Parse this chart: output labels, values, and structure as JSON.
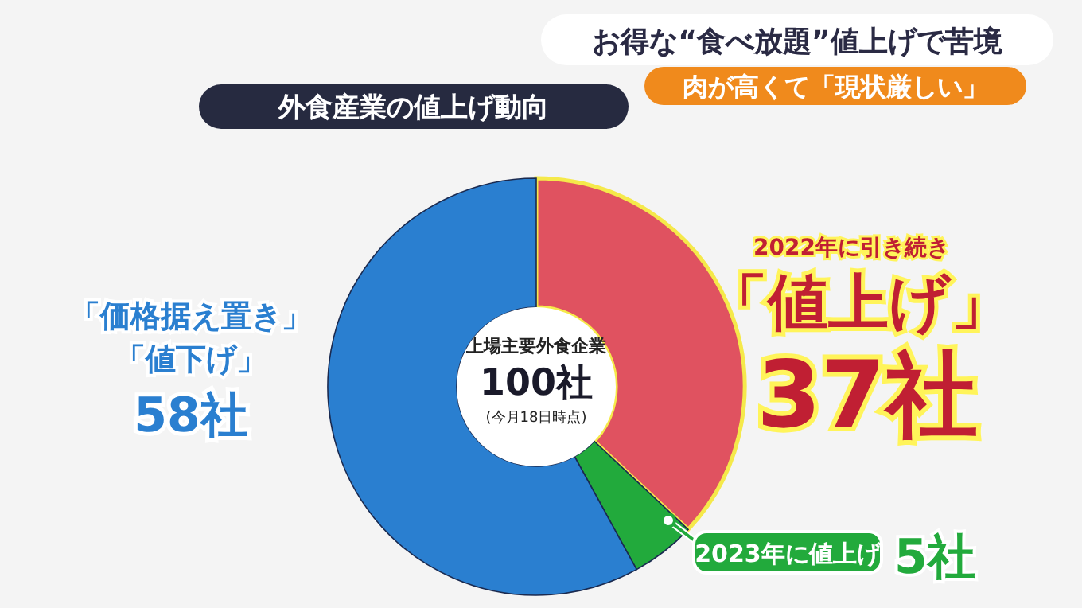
{
  "chart_data": {
    "type": "donut",
    "title": "外食産業の値上げ動向",
    "categories": [
      "2022年に引き続き「値上げ」",
      "2023年に値上げ",
      "「価格据え置き」「値下げ」"
    ],
    "values": [
      37,
      5,
      58
    ],
    "colors": [
      "#e05260",
      "#22aa3c",
      "#2a7fd0"
    ],
    "value_labels": [
      "37社",
      "5社",
      "58社"
    ],
    "annotations": [
      "お得な“食べ放題”値上げで苦境",
      "肉が高くて「現状厳しい」",
      "上場主要外食企業",
      "100社",
      "(今月18日時点)"
    ]
  }
}
